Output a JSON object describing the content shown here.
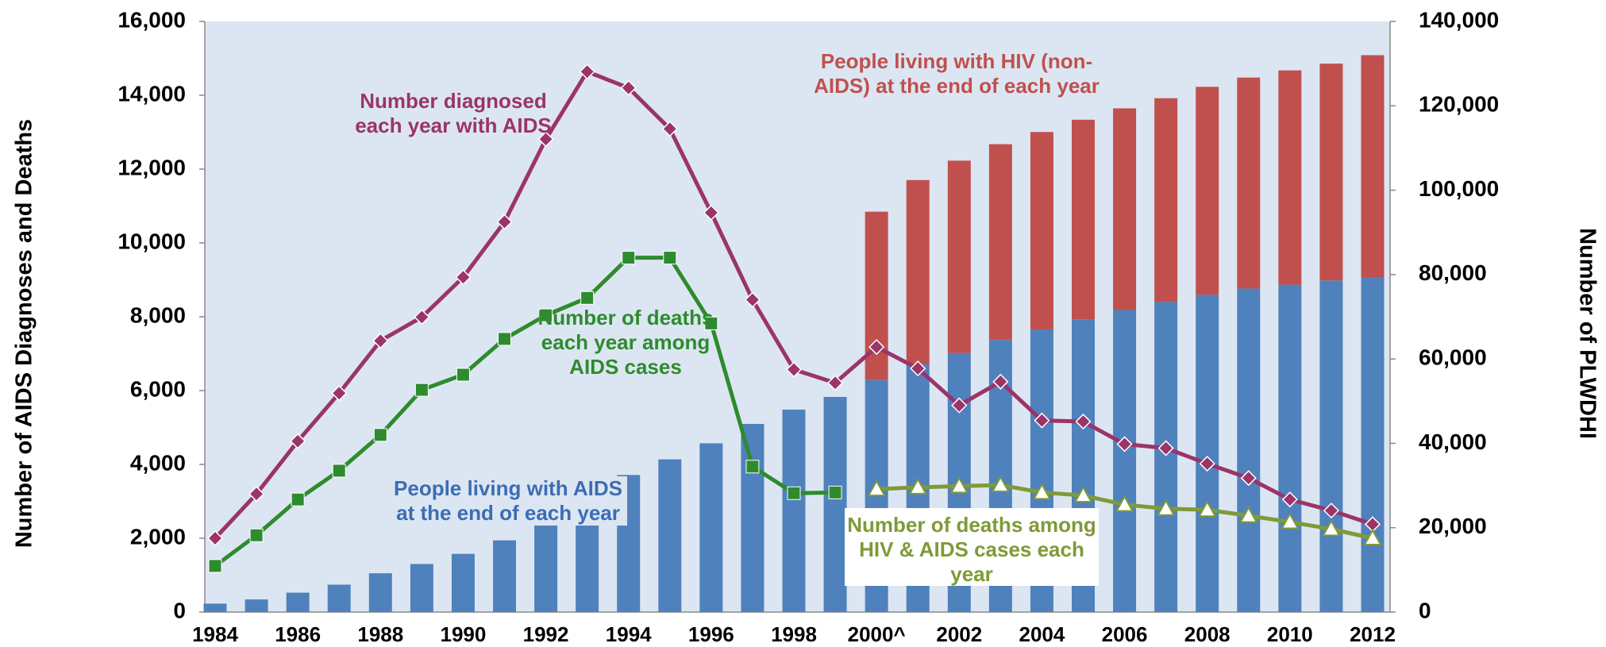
{
  "chart_data": {
    "type": "combo",
    "y_label": "Number of AIDS Diagnoses and Deaths",
    "y2_label": "Number of PLWDHI",
    "categories": [
      "1984",
      null,
      "1986",
      null,
      "1988",
      null,
      "1990",
      null,
      "1992",
      null,
      "1994",
      null,
      "1996",
      null,
      "1998",
      null,
      "2000^",
      null,
      "2002",
      null,
      "2004",
      null,
      "2006",
      null,
      "2008",
      null,
      "2010",
      null,
      "2012"
    ],
    "ylim": [
      0,
      16000
    ],
    "yticks": [
      0,
      {
        "value": 2000,
        "label": "2,000"
      },
      {
        "value": 4000,
        "label": "4,000"
      },
      {
        "value": 6000,
        "label": "6,000"
      },
      {
        "value": 8000,
        "label": "8,000"
      },
      {
        "value": 10000,
        "label": "10,000"
      },
      {
        "value": 12000,
        "label": "12,000"
      },
      {
        "value": 14000,
        "label": "14,000"
      },
      {
        "value": 16000,
        "label": "16,000"
      }
    ],
    "y2lim": [
      0,
      140000
    ],
    "y2ticks": [
      0,
      {
        "value": 20000,
        "label": "20,000"
      },
      {
        "value": 40000,
        "label": "40,000"
      },
      {
        "value": 60000,
        "label": "60,000"
      },
      {
        "value": 80000,
        "label": "80,000"
      },
      {
        "value": 100000,
        "label": "100,000"
      },
      {
        "value": 120000,
        "label": "120,000"
      },
      {
        "value": 140000,
        "label": "140,000"
      }
    ],
    "series": [
      {
        "name": "People living with AIDS at the end of each year",
        "type": "bar",
        "axis": "y2",
        "color": "#4f81bd",
        "values": [
          2000,
          3000,
          4600,
          6500,
          9200,
          11400,
          13800,
          17000,
          21800,
          27900,
          32500,
          36200,
          40000,
          44600,
          48000,
          51000,
          55000,
          58700,
          61400,
          64500,
          67000,
          69400,
          71600,
          73500,
          75200,
          76700,
          77600,
          78600,
          79300
        ]
      },
      {
        "name": "People living with HIV (non-AIDS) at the end of each year",
        "type": "bar",
        "axis": "y2",
        "color": "#c0504d",
        "values": [
          null,
          null,
          null,
          null,
          null,
          null,
          null,
          null,
          null,
          null,
          null,
          null,
          null,
          null,
          null,
          null,
          39900,
          43700,
          45600,
          46400,
          46800,
          47300,
          47800,
          48300,
          49300,
          50000,
          50800,
          51400,
          52700
        ]
      },
      {
        "name": "Number diagnosed each year with AIDS",
        "type": "line",
        "marker": "diamond",
        "color": "#9b3468",
        "values": [
          2000,
          3200,
          4630,
          5930,
          7350,
          7990,
          9070,
          10570,
          12810,
          14640,
          14200,
          13090,
          10820,
          8460,
          6570,
          6210,
          7180,
          6600,
          5600,
          6240,
          5190,
          5160,
          4550,
          4440,
          4020,
          3630,
          3050,
          2750,
          2380
        ]
      },
      {
        "name": "Number of deaths each year among AIDS cases",
        "type": "line",
        "marker": "square",
        "color": "#2e8b2e",
        "values": [
          1250,
          2080,
          3050,
          3830,
          4800,
          6020,
          6430,
          7400,
          8040,
          8510,
          9600,
          9600,
          7820,
          3940,
          3220,
          3240,
          null,
          null,
          null,
          null,
          null,
          null,
          null,
          null,
          null,
          null,
          null,
          null,
          null
        ]
      },
      {
        "name": "Number of deaths among HIV & AIDS cases each year",
        "type": "line",
        "marker": "triangle",
        "color": "#7f9a37",
        "values": [
          null,
          null,
          null,
          null,
          null,
          null,
          null,
          null,
          null,
          null,
          null,
          null,
          null,
          null,
          null,
          null,
          3330,
          3380,
          3410,
          3440,
          3240,
          3160,
          2910,
          2800,
          2770,
          2610,
          2440,
          2250,
          2000
        ]
      }
    ]
  }
}
